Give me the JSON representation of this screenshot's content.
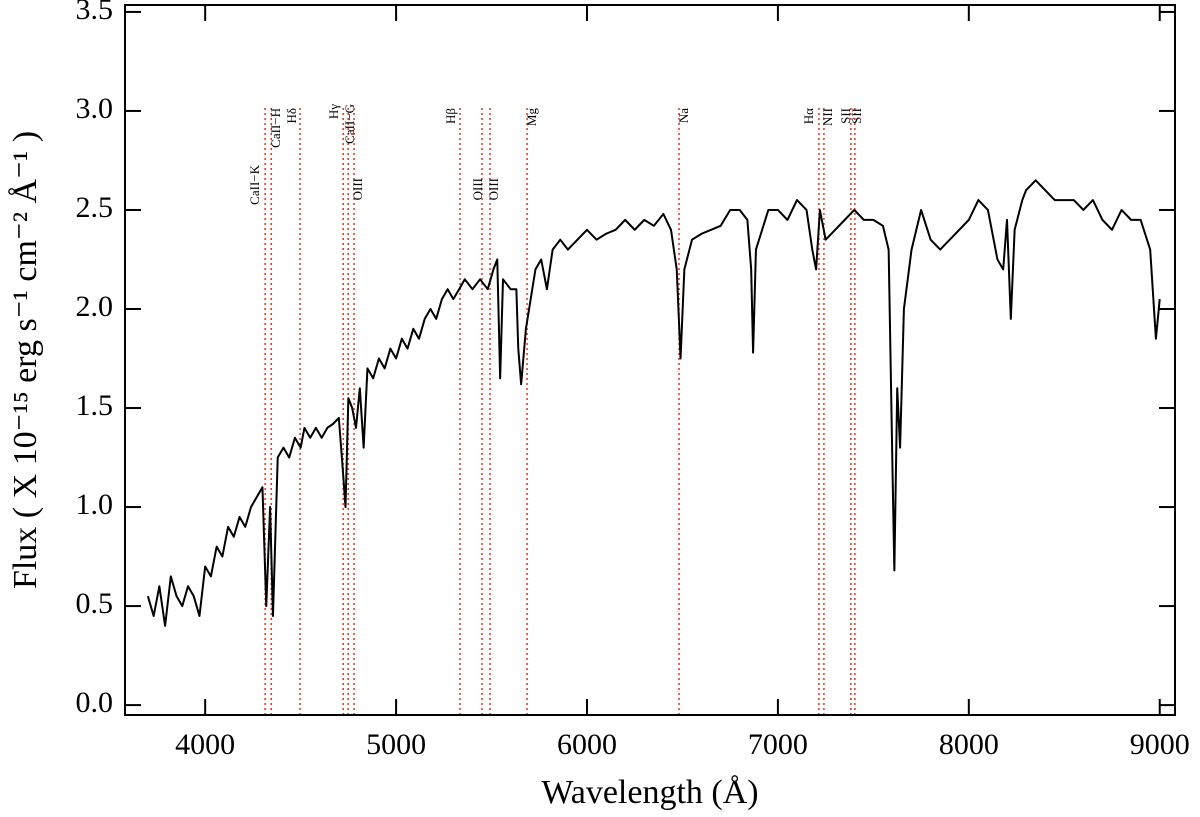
{
  "chart_data": {
    "type": "line",
    "xlabel": "Wavelength (Å)",
    "ylabel": "Flux ( X 10⁻¹⁵ erg s⁻¹ cm⁻² Å⁻¹ )",
    "color": "#000000",
    "xlim": [
      3580,
      9080
    ],
    "ylim": [
      -0.05,
      3.535
    ],
    "xticks": [
      4000,
      5000,
      6000,
      7000,
      8000,
      9000
    ],
    "yticks": [
      {
        "value": 0,
        "label": "0.0"
      },
      0.5,
      {
        "value": 1,
        "label": "1.0"
      },
      1.5,
      {
        "value": 2,
        "label": "2.0"
      },
      2.5,
      {
        "value": 3,
        "label": "3.0"
      },
      3.5
    ],
    "x": [
      3700,
      3730,
      3760,
      3790,
      3820,
      3850,
      3880,
      3910,
      3940,
      3970,
      4000,
      4030,
      4060,
      4090,
      4120,
      4150,
      4180,
      4210,
      4240,
      4270,
      4300,
      4320,
      4340,
      4355,
      4380,
      4410,
      4440,
      4470,
      4500,
      4520,
      4550,
      4580,
      4610,
      4640,
      4670,
      4700,
      4720,
      4735,
      4750,
      4770,
      4790,
      4810,
      4830,
      4850,
      4880,
      4910,
      4940,
      4970,
      5000,
      5030,
      5060,
      5090,
      5120,
      5150,
      5180,
      5210,
      5240,
      5270,
      5300,
      5330,
      5360,
      5400,
      5440,
      5480,
      5510,
      5530,
      5545,
      5560,
      5600,
      5630,
      5640,
      5655,
      5680,
      5730,
      5760,
      5790,
      5820,
      5860,
      5900,
      5950,
      6000,
      6050,
      6100,
      6150,
      6200,
      6250,
      6300,
      6350,
      6400,
      6440,
      6470,
      6490,
      6510,
      6550,
      6600,
      6650,
      6700,
      6750,
      6800,
      6840,
      6860,
      6870,
      6885,
      6950,
      7000,
      7050,
      7100,
      7150,
      7180,
      7200,
      7220,
      7250,
      7300,
      7350,
      7400,
      7450,
      7500,
      7550,
      7580,
      7600,
      7610,
      7625,
      7640,
      7660,
      7700,
      7750,
      7800,
      7850,
      7900,
      7950,
      8000,
      8050,
      8100,
      8150,
      8180,
      8200,
      8220,
      8240,
      8280,
      8300,
      8350,
      8400,
      8450,
      8500,
      8550,
      8600,
      8650,
      8700,
      8750,
      8800,
      8850,
      8900,
      8950,
      8980,
      9000
    ],
    "values": [
      0.55,
      0.45,
      0.6,
      0.4,
      0.65,
      0.55,
      0.5,
      0.6,
      0.55,
      0.45,
      0.7,
      0.65,
      0.8,
      0.75,
      0.9,
      0.85,
      0.95,
      0.9,
      1.0,
      1.05,
      1.1,
      0.5,
      1.0,
      0.45,
      1.25,
      1.3,
      1.25,
      1.35,
      1.3,
      1.4,
      1.35,
      1.4,
      1.35,
      1.4,
      1.42,
      1.45,
      1.2,
      1.0,
      1.55,
      1.5,
      1.4,
      1.6,
      1.3,
      1.7,
      1.65,
      1.75,
      1.7,
      1.8,
      1.75,
      1.85,
      1.8,
      1.9,
      1.85,
      1.95,
      2.0,
      1.95,
      2.05,
      2.1,
      2.05,
      2.1,
      2.15,
      2.1,
      2.15,
      2.1,
      2.2,
      2.25,
      1.65,
      2.15,
      2.1,
      2.1,
      1.8,
      1.62,
      1.9,
      2.2,
      2.25,
      2.1,
      2.3,
      2.35,
      2.3,
      2.35,
      2.4,
      2.35,
      2.38,
      2.4,
      2.45,
      2.4,
      2.45,
      2.42,
      2.48,
      2.4,
      2.2,
      1.75,
      2.2,
      2.35,
      2.38,
      2.4,
      2.42,
      2.5,
      2.5,
      2.45,
      2.2,
      1.78,
      2.3,
      2.5,
      2.5,
      2.45,
      2.55,
      2.5,
      2.3,
      2.2,
      2.5,
      2.35,
      2.4,
      2.45,
      2.5,
      2.45,
      2.45,
      2.42,
      2.3,
      1.2,
      0.68,
      1.6,
      1.3,
      2.0,
      2.3,
      2.5,
      2.35,
      2.3,
      2.35,
      2.4,
      2.45,
      2.55,
      2.5,
      2.25,
      2.2,
      2.45,
      1.95,
      2.4,
      2.55,
      2.6,
      2.65,
      2.6,
      2.55,
      2.55,
      2.55,
      2.5,
      2.55,
      2.45,
      2.4,
      2.5,
      2.45,
      2.45,
      2.3,
      1.85,
      2.05
    ],
    "line_color": "#e8321e",
    "lines": [
      {
        "wavelength": 4314,
        "label": "CaII−K"
      },
      {
        "wavelength": 4346,
        "label": "CaII−H"
      },
      {
        "wavelength": 4497,
        "label": "Hδ"
      },
      {
        "wavelength": 4723,
        "label": "Hγ"
      },
      {
        "wavelength": 4749,
        "label": "CaII−G"
      },
      {
        "wavelength": 4780,
        "label": "OIII"
      },
      {
        "wavelength": 5335,
        "label": "Hβ"
      },
      {
        "wavelength": 5450,
        "label": "OIII"
      },
      {
        "wavelength": 5492,
        "label": "OIII"
      },
      {
        "wavelength": 5686,
        "label": "Mg"
      },
      {
        "wavelength": 6482,
        "label": "Na"
      },
      {
        "wavelength": 7215,
        "label": "Hα"
      },
      {
        "wavelength": 7241,
        "label": "NII"
      },
      {
        "wavelength": 7382,
        "label": "SII"
      },
      {
        "wavelength": 7403,
        "label": "SII"
      }
    ]
  }
}
